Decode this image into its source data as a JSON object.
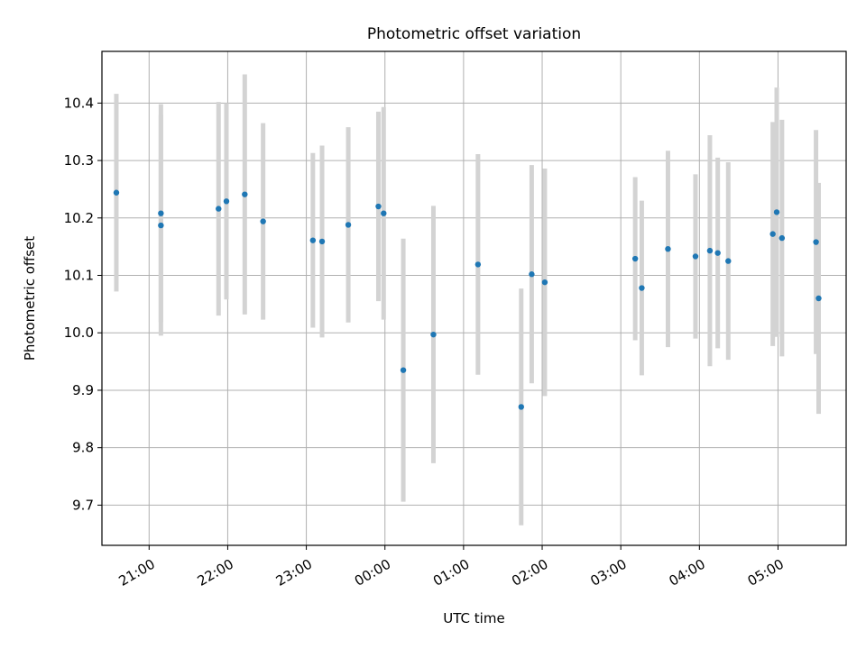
{
  "chart_data": {
    "type": "scatter",
    "title": "Photometric offset variation",
    "xlabel": "UTC time",
    "ylabel": "Photometric offset",
    "grid": true,
    "legend": "none",
    "xlim": [
      "20:24",
      "05:52"
    ],
    "ylim": [
      9.63,
      10.49
    ],
    "x_ticks": [
      "21:00",
      "22:00",
      "23:00",
      "00:00",
      "01:00",
      "02:00",
      "03:00",
      "04:00",
      "05:00"
    ],
    "y_ticks": [
      "9.7",
      "9.8",
      "9.9",
      "10.0",
      "10.1",
      "10.2",
      "10.3",
      "10.4"
    ],
    "series": [
      {
        "marker_color": "#1f77b4",
        "errorbar_color": "#d3d3d3",
        "points": [
          {
            "t": "20:35",
            "y": 10.244,
            "yerr": 0.172
          },
          {
            "t": "21:09",
            "y": 10.208,
            "yerr": 0.19
          },
          {
            "t": "21:09",
            "y": 10.187,
            "yerr": 0.192
          },
          {
            "t": "21:53",
            "y": 10.216,
            "yerr": 0.186
          },
          {
            "t": "21:59",
            "y": 10.229,
            "yerr": 0.171
          },
          {
            "t": "22:13",
            "y": 10.241,
            "yerr": 0.209
          },
          {
            "t": "22:27",
            "y": 10.194,
            "yerr": 0.171
          },
          {
            "t": "23:05",
            "y": 10.161,
            "yerr": 0.152
          },
          {
            "t": "23:12",
            "y": 10.159,
            "yerr": 0.167
          },
          {
            "t": "23:32",
            "y": 10.188,
            "yerr": 0.17
          },
          {
            "t": "23:55",
            "y": 10.22,
            "yerr": 0.165
          },
          {
            "t": "23:59",
            "y": 10.208,
            "yerr": 0.185
          },
          {
            "t": "00:14",
            "y": 9.935,
            "yerr": 0.229
          },
          {
            "t": "00:37",
            "y": 9.997,
            "yerr": 0.224
          },
          {
            "t": "01:11",
            "y": 10.119,
            "yerr": 0.192
          },
          {
            "t": "01:44",
            "y": 9.871,
            "yerr": 0.206
          },
          {
            "t": "01:52",
            "y": 10.102,
            "yerr": 0.19
          },
          {
            "t": "02:02",
            "y": 10.088,
            "yerr": 0.198
          },
          {
            "t": "03:11",
            "y": 10.129,
            "yerr": 0.142
          },
          {
            "t": "03:16",
            "y": 10.078,
            "yerr": 0.152
          },
          {
            "t": "03:36",
            "y": 10.146,
            "yerr": 0.171
          },
          {
            "t": "03:57",
            "y": 10.133,
            "yerr": 0.143
          },
          {
            "t": "04:08",
            "y": 10.143,
            "yerr": 0.201
          },
          {
            "t": "04:14",
            "y": 10.139,
            "yerr": 0.166
          },
          {
            "t": "04:22",
            "y": 10.125,
            "yerr": 0.172
          },
          {
            "t": "04:56",
            "y": 10.172,
            "yerr": 0.195
          },
          {
            "t": "04:59",
            "y": 10.21,
            "yerr": 0.217
          },
          {
            "t": "05:03",
            "y": 10.165,
            "yerr": 0.206
          },
          {
            "t": "05:29",
            "y": 10.158,
            "yerr": 0.195
          },
          {
            "t": "05:31",
            "y": 10.06,
            "yerr": 0.201
          }
        ]
      }
    ]
  }
}
